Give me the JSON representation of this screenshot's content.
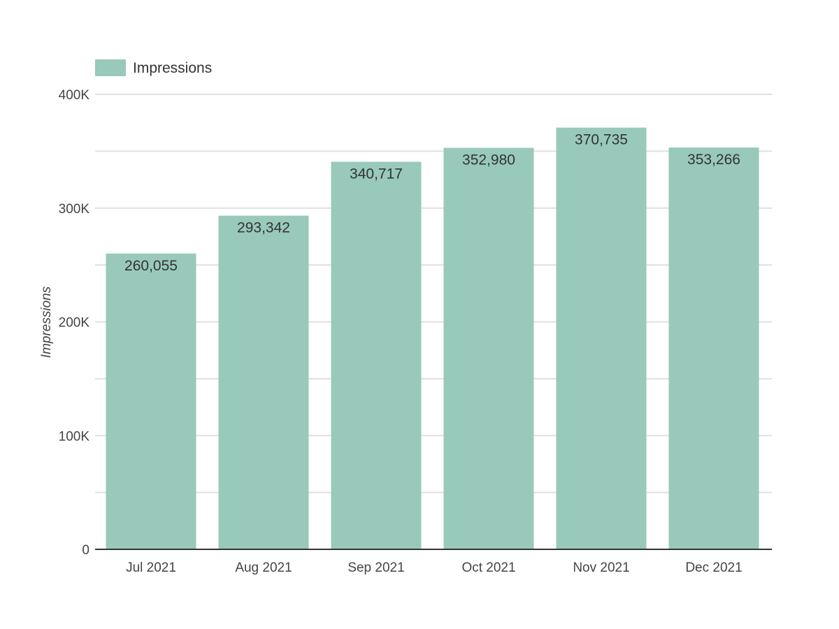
{
  "colors": {
    "bar": "#98c9bb",
    "gridline": "#e0e0e0",
    "baseline": "#333333",
    "text": "#444444"
  },
  "chart_data": {
    "type": "bar",
    "title": "",
    "xlabel": "",
    "ylabel": "Impressions",
    "categories": [
      "Jul 2021",
      "Aug 2021",
      "Sep 2021",
      "Oct 2021",
      "Nov 2021",
      "Dec 2021"
    ],
    "series": [
      {
        "name": "Impressions",
        "values": [
          260055,
          293342,
          340717,
          352980,
          370735,
          353266
        ],
        "labels": [
          "260,055",
          "293,342",
          "340,717",
          "352,980",
          "370,735",
          "353,266"
        ]
      }
    ],
    "ylim": [
      0,
      400000
    ],
    "yticks": [
      0,
      100000,
      200000,
      300000,
      400000
    ],
    "ytick_labels": [
      "0",
      "100K",
      "200K",
      "300K",
      "400K"
    ],
    "minor_gridlines": true,
    "grid": true,
    "legend": "top-left"
  }
}
